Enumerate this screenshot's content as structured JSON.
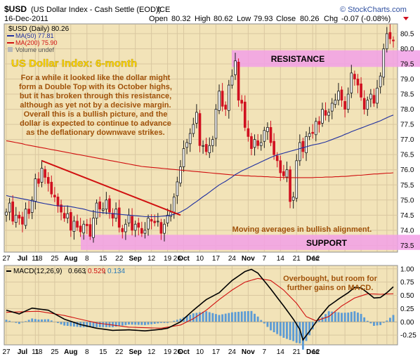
{
  "header": {
    "symbol": "$USD",
    "name": "(US Dollar Index - Cash Settle (EOD))",
    "exchange": "ICE",
    "date": "16-Dec-2011",
    "open_label": "Open",
    "open": "80.32",
    "high_label": "High",
    "high": "80.62",
    "low_label": "Low",
    "low": "79.93",
    "close_label": "Close",
    "close": "80.26",
    "chg_label": "Chg",
    "chg": "-0.07 (-0.08%)",
    "watermark": "© StockCharts.com"
  },
  "legend": {
    "main": "$USD (Daily) 80.26",
    "ma50": "MA(50) 77.81",
    "ma200": "MA(200) 75.90",
    "volume": "Volume undef"
  },
  "annotations": {
    "title": "US Dollar Index: 6-month",
    "paragraph": [
      "For a while it looked like the dollar might",
      "form a Double Top with its October highs,",
      "but it has broken through this resistance,",
      "although as yet not by a decisive margin.",
      "Overall this is a bullish picture, and the",
      "dollar is expected to continue to advance",
      "as the deflationary downwave strikes."
    ],
    "resistance": "RESISTANCE",
    "support": "SUPPORT",
    "ma_note": "Moving averages in bullish alignment.",
    "macd_note_1": "Overbought, but room for",
    "macd_note_2": "further gains on MACD."
  },
  "macd_legend": {
    "label": "MACD(12,26,9)",
    "v1": "0.663",
    "v2": "0.529",
    "v3": "0.134"
  },
  "colors": {
    "panel_bg": "#F2E3B8",
    "up": "#1A1A1A",
    "down": "#D01020",
    "ma50": "#2030A0",
    "ma200": "#D01010",
    "band": "#F2A0E6",
    "note_text": "#A0520A",
    "title_text": "#FFD800",
    "histogram": "#5B9BD5"
  },
  "chart_data": [
    {
      "type": "candlestick",
      "title": "$USD (Daily)",
      "ylim": [
        73.3,
        80.8
      ],
      "y_ticks": [
        "73.5",
        "74.0",
        "74.5",
        "75.0",
        "75.5",
        "76.0",
        "76.5",
        "77.0",
        "77.5",
        "78.0",
        "78.5",
        "79.0",
        "79.5",
        "80.0",
        "80.5"
      ],
      "x_ticks": [
        "27",
        "Jul",
        "11",
        "18",
        "25",
        "Aug",
        "8",
        "15",
        "22",
        "Sep",
        "12",
        "19",
        "26",
        "Oct",
        "10",
        "17",
        "24",
        "Nov",
        "7",
        "14",
        "21",
        "Dec",
        "12"
      ],
      "bold_ticks": [
        "Jul",
        "Aug",
        "Sep",
        "Oct",
        "Nov",
        "Dec"
      ],
      "date_start": "2011-06-20",
      "close": [
        74.6,
        74.9,
        74.3,
        74.5,
        74.4,
        74.2,
        74.7,
        74.55,
        75.0,
        75.7,
        75.55,
        76.05,
        75.75,
        75.55,
        75.2,
        75.1,
        74.8,
        74.6,
        74.4,
        74.55,
        74.0,
        74.3,
        74.1,
        73.95,
        74.2,
        74.15,
        73.8,
        74.4,
        74.9,
        74.7,
        74.7,
        75.0,
        74.6,
        74.4,
        74.7,
        74.1,
        73.95,
        74.2,
        74.5,
        74.0,
        74.2,
        74.1,
        73.9,
        74.0,
        74.4,
        74.3,
        74.25,
        74.3,
        73.9,
        74.2,
        74.5,
        74.6,
        75.1,
        75.6,
        76.1,
        76.7,
        76.9,
        77.2,
        77.5,
        77.9,
        76.8,
        76.8,
        76.6,
        76.8,
        77.0,
        78.0,
        78.6,
        78.1,
        78.0,
        78.8,
        79.1,
        79.6,
        78.3,
        78.2,
        77.4,
        77.1,
        76.7,
        77.0,
        76.8,
        76.9,
        77.3,
        77.4,
        76.9,
        76.5,
        76.3,
        75.9,
        75.8,
        76.0,
        74.95,
        75.1,
        76.3,
        76.9,
        76.6,
        77.1,
        77.2,
        77.2,
        77.6,
        77.5,
        78.0,
        77.8,
        77.9,
        78.2,
        78.3,
        78.6,
        78.3,
        78.0,
        78.5,
        79.2,
        79.0,
        78.8,
        78.4,
        78.0,
        78.3,
        78.5,
        78.2,
        78.7,
        79.1,
        80.0,
        80.5,
        80.33,
        80.26
      ],
      "ma50": [
        75.15,
        75.12,
        75.1,
        75.08,
        75.06,
        75.04,
        75.02,
        75.0,
        74.97,
        74.95,
        74.92,
        74.9,
        74.88,
        74.86,
        74.84,
        74.82,
        74.81,
        74.8,
        74.8,
        74.8,
        74.78,
        74.76,
        74.74,
        74.72,
        74.7,
        74.67,
        74.64,
        74.62,
        74.6,
        74.59,
        74.58,
        74.57,
        74.56,
        74.55,
        74.54,
        74.53,
        74.52,
        74.51,
        74.5,
        74.49,
        74.48,
        74.47,
        74.46,
        74.45,
        74.45,
        74.45,
        74.45,
        74.45,
        74.46,
        74.47,
        74.48,
        74.5,
        74.53,
        74.56,
        74.6,
        74.66,
        74.72,
        74.8,
        74.88,
        74.95,
        75.03,
        75.11,
        75.18,
        75.26,
        75.34,
        75.42,
        75.5,
        75.56,
        75.62,
        75.69,
        75.76,
        75.84,
        75.9,
        75.96,
        76.01,
        76.06,
        76.11,
        76.16,
        76.21,
        76.26,
        76.31,
        76.36,
        76.41,
        76.45,
        76.49,
        76.52,
        76.55,
        76.58,
        76.61,
        76.64,
        76.67,
        76.7,
        76.73,
        76.76,
        76.79,
        76.82,
        76.84,
        76.86,
        76.89,
        76.92,
        76.96,
        77.0,
        77.04,
        77.08,
        77.12,
        77.17,
        77.21,
        77.26,
        77.3,
        77.34,
        77.38,
        77.42,
        77.46,
        77.5,
        77.54,
        77.58,
        77.62,
        77.67,
        77.72,
        77.77,
        77.81
      ],
      "ma200": [
        76.96,
        76.94,
        76.92,
        76.9,
        76.88,
        76.86,
        76.83,
        76.81,
        76.79,
        76.77,
        76.75,
        76.73,
        76.71,
        76.69,
        76.67,
        76.65,
        76.63,
        76.61,
        76.59,
        76.57,
        76.55,
        76.53,
        76.51,
        76.49,
        76.47,
        76.45,
        76.43,
        76.41,
        76.39,
        76.37,
        76.35,
        76.33,
        76.31,
        76.29,
        76.27,
        76.25,
        76.23,
        76.21,
        76.19,
        76.17,
        76.15,
        76.13,
        76.11,
        76.1,
        76.09,
        76.08,
        76.07,
        76.06,
        76.05,
        76.04,
        76.03,
        76.02,
        76.01,
        76.0,
        75.99,
        75.98,
        75.97,
        75.96,
        75.95,
        75.94,
        75.93,
        75.92,
        75.91,
        75.9,
        75.89,
        75.88,
        75.87,
        75.86,
        75.85,
        75.84,
        75.83,
        75.82,
        75.82,
        75.81,
        75.8,
        75.8,
        75.79,
        75.79,
        75.78,
        75.78,
        75.77,
        75.77,
        75.76,
        75.76,
        75.75,
        75.75,
        75.75,
        75.74,
        75.74,
        75.74,
        75.74,
        75.74,
        75.74,
        75.74,
        75.74,
        75.74,
        75.75,
        75.75,
        75.75,
        75.76,
        75.76,
        75.76,
        75.77,
        75.77,
        75.78,
        75.78,
        75.79,
        75.8,
        75.81,
        75.82,
        75.82,
        75.83,
        75.84,
        75.85,
        75.86,
        75.86,
        75.87,
        75.88,
        75.89,
        75.89,
        75.9
      ],
      "resistance_band": [
        79.4,
        79.95
      ],
      "support_band": [
        73.35,
        73.85
      ],
      "trendline": [
        {
          "i": 11,
          "y": 76.3
        },
        {
          "i": 54,
          "y": 74.5
        }
      ]
    },
    {
      "type": "line",
      "title": "MACD(12,26,9)",
      "ylim": [
        -0.42,
        1.05
      ],
      "y_ticks": [
        "1.00",
        "0.75",
        "0.50",
        "0.25",
        "0.00",
        "-0.25"
      ],
      "macd_points": [
        [
          0,
          0.22
        ],
        [
          4,
          0.15
        ],
        [
          8,
          0.26
        ],
        [
          13,
          0.22
        ],
        [
          18,
          0.05
        ],
        [
          23,
          -0.05
        ],
        [
          28,
          -0.12
        ],
        [
          33,
          -0.16
        ],
        [
          38,
          -0.15
        ],
        [
          43,
          -0.17
        ],
        [
          48,
          -0.14
        ],
        [
          50,
          -0.12
        ],
        [
          54,
          0.0
        ],
        [
          58,
          0.22
        ],
        [
          62,
          0.42
        ],
        [
          66,
          0.55
        ],
        [
          70,
          0.78
        ],
        [
          74,
          0.95
        ],
        [
          76,
          0.99
        ],
        [
          78,
          0.92
        ],
        [
          82,
          0.62
        ],
        [
          86,
          0.3
        ],
        [
          89,
          0.05
        ],
        [
          91,
          -0.14
        ],
        [
          92,
          -0.34
        ],
        [
          94,
          -0.18
        ],
        [
          97,
          0.08
        ],
        [
          100,
          0.3
        ],
        [
          103,
          0.43
        ],
        [
          106,
          0.55
        ],
        [
          108,
          0.65
        ],
        [
          110,
          0.64
        ],
        [
          112,
          0.55
        ],
        [
          114,
          0.45
        ],
        [
          116,
          0.46
        ],
        [
          118,
          0.55
        ],
        [
          120,
          0.66
        ]
      ],
      "signal_points": [
        [
          0,
          0.18
        ],
        [
          10,
          0.2
        ],
        [
          18,
          0.12
        ],
        [
          28,
          -0.02
        ],
        [
          38,
          -0.1
        ],
        [
          48,
          -0.12
        ],
        [
          54,
          -0.06
        ],
        [
          58,
          0.06
        ],
        [
          62,
          0.22
        ],
        [
          66,
          0.42
        ],
        [
          70,
          0.6
        ],
        [
          74,
          0.75
        ],
        [
          78,
          0.82
        ],
        [
          82,
          0.78
        ],
        [
          86,
          0.6
        ],
        [
          90,
          0.35
        ],
        [
          93,
          0.1
        ],
        [
          96,
          0.02
        ],
        [
          100,
          0.1
        ],
        [
          104,
          0.3
        ],
        [
          108,
          0.45
        ],
        [
          112,
          0.53
        ],
        [
          116,
          0.52
        ],
        [
          120,
          0.53
        ]
      ]
    }
  ]
}
